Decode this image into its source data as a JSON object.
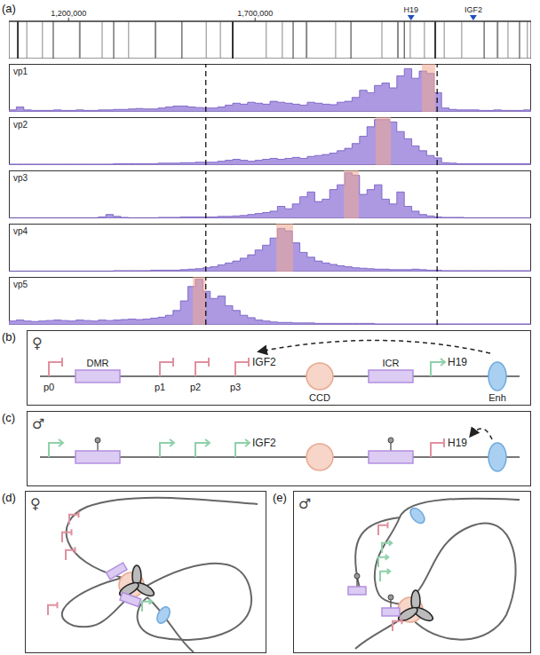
{
  "chart_data": {
    "type": "histogram",
    "panel_label": "(a)",
    "xlim": [
      1040000,
      2440000
    ],
    "xticks": [
      {
        "value": 1200000,
        "label": "1,200,000"
      },
      {
        "value": 1700000,
        "label": "1,700,000"
      }
    ],
    "tick_labels": "x",
    "ylim": [
      0,
      100
    ],
    "bins": [
      1040000,
      1060000,
      1080000,
      1100000,
      1120000,
      1140000,
      1160000,
      1180000,
      1200000,
      1220000,
      1240000,
      1260000,
      1280000,
      1300000,
      1320000,
      1340000,
      1360000,
      1380000,
      1400000,
      1420000,
      1440000,
      1460000,
      1480000,
      1500000,
      1520000,
      1540000,
      1560000,
      1580000,
      1600000,
      1620000,
      1640000,
      1660000,
      1680000,
      1700000,
      1720000,
      1740000,
      1760000,
      1780000,
      1800000,
      1820000,
      1840000,
      1860000,
      1880000,
      1900000,
      1920000,
      1940000,
      1960000,
      1980000,
      2000000,
      2020000,
      2040000,
      2060000,
      2080000,
      2100000,
      2120000,
      2140000,
      2160000,
      2180000,
      2200000,
      2220000,
      2240000,
      2260000,
      2280000,
      2300000,
      2320000,
      2340000,
      2360000,
      2380000,
      2400000,
      2420000,
      2440000
    ],
    "genes": [
      1064000,
      1088000,
      1130000,
      1159000,
      1230000,
      1290000,
      1321000,
      1361000,
      1433000,
      1504000,
      1569000,
      1607000,
      1640000,
      1730000,
      1773000,
      1802000,
      1838000,
      1916000,
      1957000,
      2040000,
      2083000,
      2100000,
      2116000,
      2154000,
      2183000,
      2207000,
      2254000,
      2314000,
      2350000,
      2378000,
      2409000,
      2430000
    ],
    "annotations": [
      {
        "text": "H19",
        "x": 2118000
      },
      {
        "text": "IGF2",
        "x": 2285000
      }
    ],
    "boundaries": [
      1568000,
      2188000
    ],
    "series": [
      {
        "name": "vp1",
        "color": "#9d87dd",
        "viewpoint": [
          2147000,
          2183000
        ],
        "values": [
          4,
          10,
          4,
          3,
          3,
          3,
          4,
          3,
          3,
          4,
          3,
          3,
          4,
          4,
          5,
          5,
          6,
          7,
          6,
          6,
          8,
          10,
          12,
          12,
          10,
          9,
          8,
          8,
          10,
          14,
          18,
          16,
          20,
          18,
          16,
          22,
          20,
          18,
          16,
          14,
          20,
          18,
          16,
          15,
          20,
          22,
          30,
          45,
          40,
          55,
          60,
          50,
          75,
          90,
          70,
          85,
          80,
          40,
          8,
          5,
          4,
          4,
          4,
          3,
          3,
          4,
          3,
          3,
          3,
          4
        ]
      },
      {
        "name": "vp2",
        "color": "#9d87dd",
        "viewpoint": [
          2023000,
          2064000
        ],
        "values": [
          2,
          2,
          2,
          2,
          2,
          2,
          2,
          2,
          2,
          2,
          2,
          2,
          2,
          2,
          3,
          3,
          3,
          3,
          3,
          3,
          4,
          4,
          4,
          5,
          5,
          6,
          6,
          6,
          8,
          10,
          12,
          10,
          8,
          10,
          12,
          14,
          12,
          14,
          16,
          14,
          18,
          20,
          22,
          25,
          30,
          35,
          45,
          60,
          80,
          95,
          95,
          90,
          70,
          55,
          40,
          30,
          20,
          15,
          5,
          4,
          3,
          3,
          3,
          3,
          3,
          3,
          3,
          3,
          3,
          3
        ]
      },
      {
        "name": "vp3",
        "color": "#9d87dd",
        "viewpoint": [
          1938000,
          1978000
        ],
        "values": [
          1,
          1,
          1,
          1,
          1,
          1,
          1,
          1,
          1,
          1,
          1,
          1,
          3,
          8,
          4,
          2,
          1,
          1,
          1,
          1,
          2,
          2,
          2,
          3,
          3,
          3,
          3,
          3,
          4,
          4,
          5,
          6,
          8,
          10,
          12,
          15,
          25,
          20,
          30,
          45,
          55,
          35,
          40,
          60,
          70,
          95,
          90,
          50,
          60,
          70,
          40,
          30,
          55,
          25,
          15,
          8,
          5,
          3,
          2,
          2,
          2,
          1,
          1,
          1,
          1,
          1,
          1,
          1,
          1,
          1
        ]
      },
      {
        "name": "vp4",
        "color": "#9d87dd",
        "viewpoint": [
          1757000,
          1802000
        ],
        "values": [
          1,
          1,
          1,
          1,
          1,
          1,
          1,
          1,
          1,
          1,
          1,
          1,
          1,
          1,
          2,
          2,
          2,
          2,
          2,
          3,
          3,
          3,
          3,
          4,
          5,
          6,
          8,
          10,
          14,
          18,
          22,
          28,
          35,
          45,
          55,
          70,
          90,
          85,
          60,
          40,
          30,
          22,
          18,
          15,
          12,
          10,
          8,
          7,
          6,
          5,
          5,
          4,
          4,
          4,
          5,
          4,
          3,
          3,
          2,
          2,
          2,
          2,
          2,
          2,
          2,
          2,
          2,
          2,
          2,
          2
        ]
      },
      {
        "name": "vp5",
        "color": "#9d87dd",
        "viewpoint": [
          1533000,
          1568000
        ],
        "values": [
          8,
          10,
          8,
          7,
          8,
          9,
          10,
          9,
          8,
          10,
          9,
          8,
          10,
          9,
          10,
          11,
          12,
          11,
          12,
          14,
          16,
          20,
          30,
          50,
          80,
          95,
          70,
          55,
          60,
          40,
          30,
          20,
          15,
          10,
          8,
          6,
          5,
          5,
          4,
          4,
          4,
          3,
          3,
          3,
          3,
          3,
          3,
          3,
          3,
          2,
          2,
          2,
          2,
          2,
          2,
          2,
          2,
          2,
          2,
          2,
          2,
          2,
          2,
          2,
          2,
          2,
          2,
          2,
          2,
          2
        ]
      }
    ]
  },
  "diagrams": {
    "b": {
      "panel_label": "(b)",
      "sex": "♀",
      "promoters": [
        "p0",
        "p1",
        "p2",
        "p3"
      ],
      "dmr": "DMR",
      "gene1": "IGF2",
      "ccd": "CCD",
      "icr": "ICR",
      "gene2": "H19",
      "enhancer": "Enh"
    },
    "c": {
      "panel_label": "(c)",
      "sex": "♂",
      "gene1": "IGF2",
      "gene2": "H19"
    },
    "d": {
      "panel_label": "(d)",
      "sex": "♀"
    },
    "e": {
      "panel_label": "(e)",
      "sex": "♂"
    }
  }
}
